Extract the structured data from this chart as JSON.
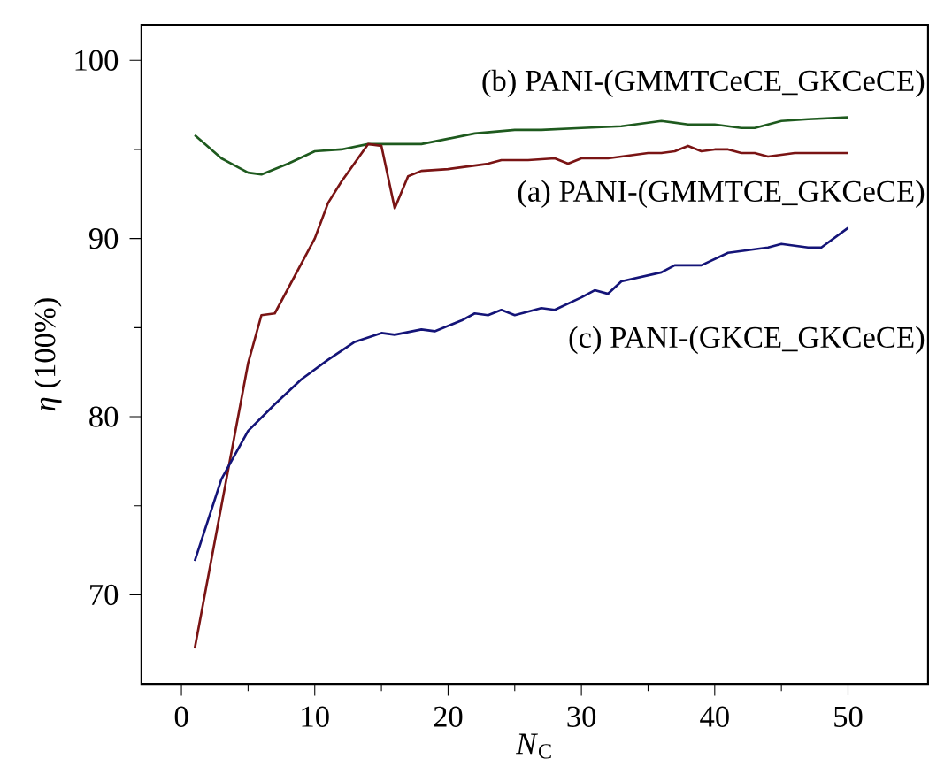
{
  "chart_data": {
    "type": "line",
    "xlabel": "*N*$_{C}$",
    "ylabel": "*η* (100%)",
    "xlim": [
      -3,
      56
    ],
    "ylim": [
      65,
      102
    ],
    "xticks": [
      0,
      10,
      20,
      30,
      40,
      50
    ],
    "yticks": [
      70,
      80,
      90,
      100
    ],
    "grid": false,
    "legend": false,
    "marker": "none",
    "line_style": "solid",
    "series": [
      {
        "name": "(b) PANI-(GMMTCeCE_GKCeCE)",
        "color": "#1e5a1e",
        "x": [
          1,
          3,
          5,
          6,
          8,
          10,
          12,
          14,
          16,
          18,
          20,
          22,
          25,
          27,
          30,
          33,
          35,
          36,
          38,
          40,
          42,
          43,
          45,
          47,
          50
        ],
        "values": [
          95.8,
          94.5,
          93.7,
          93.6,
          94.2,
          94.9,
          95.0,
          95.3,
          95.3,
          95.3,
          95.6,
          95.9,
          96.1,
          96.1,
          96.2,
          96.3,
          96.5,
          96.6,
          96.4,
          96.4,
          96.2,
          96.2,
          96.6,
          96.7,
          96.8
        ]
      },
      {
        "name": "(a) PANI-(GMMTCE_GKCeCE)",
        "color": "#7a1414",
        "x": [
          1,
          3,
          5,
          6,
          7,
          10,
          11,
          12,
          14,
          15,
          16,
          17,
          18,
          20,
          22,
          23,
          24,
          26,
          28,
          29,
          30,
          32,
          35,
          36,
          37,
          38,
          39,
          40,
          41,
          42,
          43,
          44,
          46,
          48,
          50
        ],
        "values": [
          67.0,
          75.0,
          83.0,
          85.7,
          85.8,
          90.0,
          92.0,
          93.2,
          95.3,
          95.2,
          91.7,
          93.5,
          93.8,
          93.9,
          94.1,
          94.2,
          94.4,
          94.4,
          94.5,
          94.2,
          94.5,
          94.5,
          94.8,
          94.8,
          94.9,
          95.2,
          94.9,
          95.0,
          95.0,
          94.8,
          94.8,
          94.6,
          94.8,
          94.8,
          94.8
        ]
      },
      {
        "name": "(c) PANI-(GKCE_GKCeCE)",
        "color": "#141478",
        "x": [
          1,
          3,
          5,
          7,
          9,
          11,
          13,
          15,
          16,
          18,
          19,
          21,
          22,
          23,
          24,
          25,
          27,
          28,
          30,
          31,
          32,
          33,
          36,
          37,
          39,
          41,
          44,
          45,
          47,
          48,
          50
        ],
        "values": [
          71.9,
          76.5,
          79.2,
          80.7,
          82.1,
          83.2,
          84.2,
          84.7,
          84.6,
          84.9,
          84.8,
          85.4,
          85.8,
          85.7,
          86.0,
          85.7,
          86.1,
          86.0,
          86.7,
          87.1,
          86.9,
          87.6,
          88.1,
          88.5,
          88.5,
          89.2,
          89.5,
          89.7,
          89.5,
          89.5,
          90.6
        ]
      }
    ]
  }
}
